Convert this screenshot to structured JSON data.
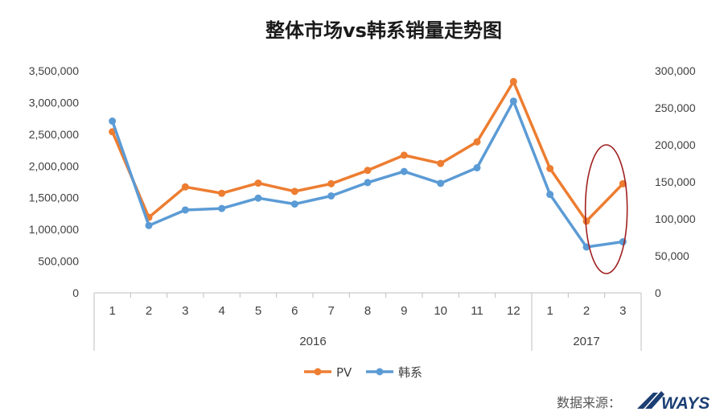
{
  "chart_data": {
    "type": "line",
    "title": "整体市场vs韩系销量走势图",
    "categories": [
      "1",
      "2",
      "3",
      "4",
      "5",
      "6",
      "7",
      "8",
      "9",
      "10",
      "11",
      "12",
      "1",
      "2",
      "3"
    ],
    "groups": [
      {
        "label": "2016",
        "count": 12
      },
      {
        "label": "2017",
        "count": 3
      }
    ],
    "y_left": {
      "min": 0,
      "max": 3500000,
      "ticks": [
        "0",
        "500,000",
        "1,000,000",
        "1,500,000",
        "2,000,000",
        "2,500,000",
        "3,000,000",
        "3,500,000"
      ]
    },
    "y_right": {
      "min": 0,
      "max": 300000,
      "ticks": [
        "0",
        "50,000",
        "100,000",
        "150,000",
        "200,000",
        "250,000",
        "300,000"
      ]
    },
    "series": [
      {
        "name": "PV",
        "axis": "left",
        "color": "#ED7D31",
        "values": [
          2540000,
          1190000,
          1670000,
          1570000,
          1730000,
          1600000,
          1720000,
          1930000,
          2170000,
          2040000,
          2380000,
          3330000,
          1960000,
          1130000,
          1720000
        ]
      },
      {
        "name": "韩系",
        "axis": "right",
        "color": "#5B9BD5",
        "values": [
          232000,
          91000,
          112000,
          114000,
          128000,
          120000,
          131000,
          149000,
          164000,
          148000,
          169000,
          259000,
          133000,
          62000,
          69000
        ]
      }
    ],
    "legend_position": "bottom",
    "annotation": "red ellipse highlighting 2017 months 2–3",
    "annotation_color": "#A02020"
  },
  "footer": {
    "source_label": "数据来源：",
    "brand": "WAYS",
    "brand_color": "#1b3f73"
  }
}
